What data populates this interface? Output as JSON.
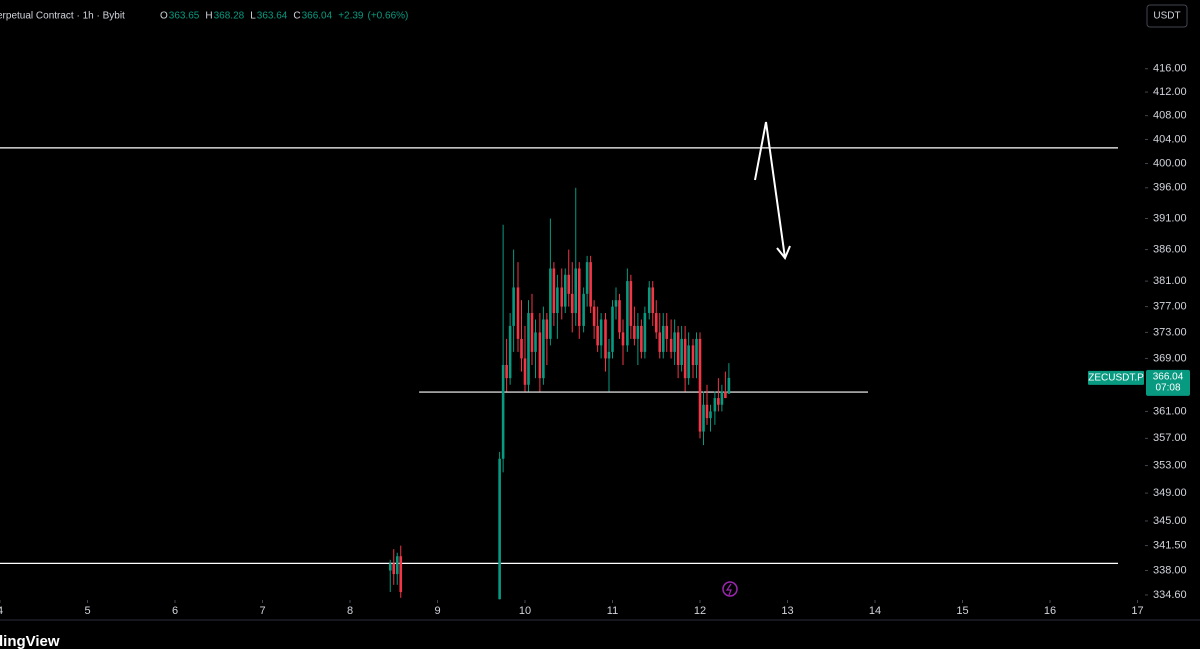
{
  "chart_data": {
    "type": "candlestick",
    "title": "erpetual Contract · 1h · Bybit",
    "legend": [
      {
        "label": "O",
        "value": 363.65
      },
      {
        "label": "H",
        "value": 368.28
      },
      {
        "label": "L",
        "value": 363.64
      },
      {
        "label": "C",
        "value": 366.04
      }
    ],
    "change": "+2.39",
    "change_pct": "(+0.66%)",
    "currency": "USDT",
    "symbol": "ZECUSDT.P",
    "last_price": 366.04,
    "countdown": "07:08",
    "watermark": "dingView",
    "up_color": "#089981",
    "down_color": "#f23645",
    "log_scale": true,
    "xlim": [
      4,
      17.0857
    ],
    "xticks": [
      4,
      5,
      6,
      7,
      8,
      9,
      10,
      11,
      12,
      13,
      14,
      15,
      16,
      17
    ],
    "ylim": [
      333.9,
      428
    ],
    "yticks": [
      {
        "value": 416,
        "label": "416.00"
      },
      {
        "value": 412,
        "label": "412.00"
      },
      {
        "value": 408,
        "label": "408.00"
      },
      {
        "value": 404,
        "label": "404.00"
      },
      {
        "value": 400,
        "label": "400.00"
      },
      {
        "value": 396,
        "label": "396.00"
      },
      {
        "value": 391,
        "label": "391.00"
      },
      {
        "value": 386,
        "label": "386.00"
      },
      {
        "value": 381,
        "label": "381.00"
      },
      {
        "value": 377,
        "label": "377.00"
      },
      {
        "value": 373,
        "label": "373.00"
      },
      {
        "value": 369,
        "label": "369.00"
      },
      {
        "value": 361,
        "label": "361.00"
      },
      {
        "value": 357,
        "label": "357.00"
      },
      {
        "value": 353,
        "label": "353.00"
      },
      {
        "value": 349,
        "label": "349.00"
      },
      {
        "value": 345,
        "label": "345.00"
      },
      {
        "value": 341.5,
        "label": "341.50"
      },
      {
        "value": 338,
        "label": "338.00"
      },
      {
        "value": 334.6,
        "label": "334.60"
      }
    ],
    "levels": [
      {
        "y": 402.6
      },
      {
        "y": 363.9,
        "x": [
          8.79,
          13.92
        ]
      },
      {
        "y": 339
      }
    ],
    "x": [
      8.46,
      8.5,
      8.54,
      8.58,
      9.71,
      9.75,
      9.79,
      9.83,
      9.87,
      9.92,
      9.96,
      10.0,
      10.04,
      10.08,
      10.12,
      10.17,
      10.21,
      10.25,
      10.29,
      10.33,
      10.37,
      10.42,
      10.46,
      10.5,
      10.54,
      10.58,
      10.62,
      10.67,
      10.71,
      10.75,
      10.79,
      10.83,
      10.87,
      10.92,
      10.96,
      11.0,
      11.04,
      11.08,
      11.12,
      11.17,
      11.21,
      11.25,
      11.29,
      11.33,
      11.37,
      11.42,
      11.46,
      11.5,
      11.54,
      11.58,
      11.62,
      11.67,
      11.71,
      11.75,
      11.79,
      11.83,
      11.87,
      11.92,
      11.96,
      12.0,
      12.04,
      12.08,
      12.12,
      12.17,
      12.21,
      12.25,
      12.29,
      12.33
    ],
    "open": [
      338,
      339,
      337.5,
      340,
      334,
      354,
      368,
      366,
      374,
      380,
      372,
      369,
      365,
      376,
      370,
      373,
      366,
      375,
      372,
      383,
      376,
      380,
      377,
      382,
      379,
      376,
      383,
      374,
      379,
      384,
      377,
      374,
      371,
      375,
      369,
      370,
      377,
      378,
      373,
      371,
      381,
      374,
      372,
      374,
      370,
      376,
      380,
      376,
      373,
      370,
      374,
      372,
      370,
      373,
      368,
      372,
      366,
      371,
      368,
      372,
      358,
      362,
      360,
      361,
      363,
      362,
      364,
      363.65
    ],
    "high": [
      339.5,
      341,
      340.5,
      341.5,
      355,
      390,
      372,
      376,
      386,
      384,
      378,
      374,
      378,
      379,
      375,
      376,
      377,
      376,
      391,
      384,
      382,
      383,
      383,
      386,
      384,
      396,
      384,
      380,
      385,
      385,
      378,
      377,
      376,
      376,
      372,
      378,
      380,
      379,
      375,
      383,
      382,
      377,
      376,
      375,
      377,
      381,
      381,
      378,
      376,
      376,
      376,
      375,
      375,
      374,
      374,
      374,
      373,
      372,
      373,
      373,
      364,
      365,
      362,
      364,
      366,
      365,
      367,
      368.28
    ],
    "low": [
      335,
      336,
      336,
      334.2,
      334,
      352,
      364,
      365,
      370,
      370,
      367,
      364,
      364,
      368,
      366,
      364,
      365,
      368,
      371,
      374,
      372,
      375,
      376,
      377,
      373,
      374,
      372,
      373,
      377,
      376,
      372,
      370,
      369,
      367,
      364,
      369,
      375,
      372,
      368,
      370,
      372,
      371,
      368,
      369,
      369,
      375,
      374,
      372,
      369,
      369,
      370,
      369,
      368,
      366,
      367,
      364,
      365,
      366,
      366,
      357,
      356,
      359,
      358,
      359,
      361,
      361,
      363,
      363.64
    ],
    "close": [
      339,
      337.5,
      340,
      335,
      354,
      368,
      366,
      374,
      380,
      372,
      369,
      365,
      376,
      370,
      373,
      366,
      375,
      372,
      383,
      376,
      380,
      377,
      382,
      379,
      376,
      383,
      374,
      379,
      384,
      377,
      374,
      371,
      375,
      369,
      370,
      377,
      378,
      373,
      371,
      381,
      374,
      372,
      374,
      370,
      376,
      380,
      376,
      373,
      370,
      374,
      372,
      370,
      373,
      368,
      372,
      366,
      371,
      368,
      372,
      358,
      362,
      360,
      361,
      363,
      362,
      364,
      363,
      366.04
    ]
  }
}
